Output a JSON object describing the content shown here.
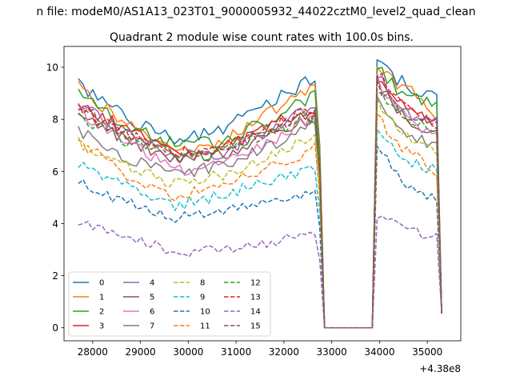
{
  "chart_data": {
    "type": "line",
    "suptitle": "n file: modeM0/AS1A13_023T01_9000005932_44022cztM0_level2_quad_clean",
    "title": "Quadrant 2 module wise count rates with 100.0s bins.",
    "xlabel": "",
    "ylabel": "",
    "x_offset_label": "+4.38e8",
    "xlim": [
      27400,
      35700
    ],
    "ylim": [
      -0.5,
      10.8
    ],
    "xticks": [
      28000,
      29000,
      30000,
      31000,
      32000,
      33000,
      34000,
      35000
    ],
    "yticks": [
      0,
      2,
      4,
      6,
      8,
      10
    ],
    "grid": false,
    "legend_position": "lower-left",
    "legend_columns": 4,
    "segments": [
      {
        "x_start": 27700,
        "x_end": 32750
      },
      {
        "x_start": 32850,
        "x_end": 33850
      },
      {
        "x_start": 33950,
        "x_end": 35300
      }
    ],
    "series": [
      {
        "name": "0",
        "color": "#1f77b4",
        "dashed": false,
        "seg1": [
          9.4,
          8.0,
          7.2,
          7.7,
          8.7,
          9.7
        ],
        "gap": 0,
        "seg3": [
          10.3,
          9.5,
          9.1,
          8.6
        ]
      },
      {
        "name": "1",
        "color": "#ff7f0e",
        "dashed": false,
        "seg1": [
          9.2,
          7.9,
          6.9,
          7.2,
          8.3,
          9.4
        ],
        "gap": 0,
        "seg3": [
          10.0,
          9.2,
          8.9,
          8.0
        ]
      },
      {
        "name": "2",
        "color": "#2ca02c",
        "dashed": false,
        "seg1": [
          9.0,
          7.8,
          7.0,
          7.2,
          8.0,
          9.0
        ],
        "gap": 0,
        "seg3": [
          10.1,
          9.0,
          8.8,
          8.5
        ]
      },
      {
        "name": "3",
        "color": "#d62728",
        "dashed": false,
        "seg1": [
          8.6,
          7.6,
          6.8,
          6.9,
          7.8,
          8.4
        ],
        "gap": 0,
        "seg3": [
          9.6,
          8.8,
          8.2,
          7.8
        ]
      },
      {
        "name": "4",
        "color": "#9467bd",
        "dashed": false,
        "seg1": [
          8.7,
          7.4,
          6.6,
          6.7,
          7.7,
          8.5
        ],
        "gap": 0,
        "seg3": [
          9.7,
          8.5,
          8.0,
          7.9
        ]
      },
      {
        "name": "5",
        "color": "#8c564b",
        "dashed": false,
        "seg1": [
          8.3,
          7.2,
          6.5,
          6.6,
          7.4,
          8.1
        ],
        "gap": 0,
        "seg3": [
          9.4,
          8.2,
          7.8,
          7.5
        ]
      },
      {
        "name": "6",
        "color": "#e377c2",
        "dashed": false,
        "seg1": [
          8.3,
          7.1,
          6.0,
          6.3,
          7.2,
          8.2
        ],
        "gap": 0,
        "seg3": [
          9.5,
          8.4,
          7.6,
          7.4
        ]
      },
      {
        "name": "7",
        "color": "#7f7f7f",
        "dashed": false,
        "seg1": [
          7.6,
          6.5,
          5.9,
          6.2,
          7.0,
          7.9
        ],
        "gap": 0,
        "seg3": [
          8.8,
          7.6,
          7.2,
          7.0
        ]
      },
      {
        "name": "8",
        "color": "#bcbd22",
        "dashed": true,
        "seg1": [
          7.1,
          6.2,
          5.5,
          5.9,
          6.7,
          7.3
        ],
        "gap": 0,
        "seg3": [
          8.7,
          7.5,
          7.1,
          6.6
        ]
      },
      {
        "name": "9",
        "color": "#17becf",
        "dashed": true,
        "seg1": [
          6.3,
          5.5,
          4.7,
          5.1,
          5.7,
          6.2
        ],
        "gap": 0,
        "seg3": [
          7.5,
          6.6,
          6.2,
          6.1
        ]
      },
      {
        "name": "10",
        "color": "#1f77b4",
        "dashed": true,
        "seg1": [
          5.6,
          4.8,
          4.2,
          4.4,
          4.9,
          5.3
        ],
        "gap": 0,
        "seg3": [
          7.0,
          5.8,
          5.1,
          4.8
        ]
      },
      {
        "name": "11",
        "color": "#ff7f0e",
        "dashed": true,
        "seg1": [
          7.2,
          5.8,
          5.0,
          5.5,
          6.2,
          7.0
        ],
        "gap": 0,
        "seg3": [
          8.2,
          7.0,
          6.6,
          5.8
        ]
      },
      {
        "name": "12",
        "color": "#2ca02c",
        "dashed": true,
        "seg1": [
          8.1,
          7.2,
          6.6,
          6.7,
          7.5,
          8.2
        ],
        "gap": 0,
        "seg3": [
          9.2,
          8.2,
          7.8,
          7.6
        ]
      },
      {
        "name": "13",
        "color": "#d62728",
        "dashed": true,
        "seg1": [
          8.4,
          7.4,
          6.7,
          6.9,
          7.7,
          8.5
        ],
        "gap": 0,
        "seg3": [
          9.8,
          8.6,
          8.0,
          7.7
        ]
      },
      {
        "name": "14",
        "color": "#9467bd",
        "dashed": true,
        "seg1": [
          4.1,
          3.5,
          2.9,
          3.0,
          3.3,
          3.6
        ],
        "gap": 0,
        "seg3": [
          4.3,
          3.9,
          3.6,
          3.4
        ]
      },
      {
        "name": "15",
        "color": "#8c564b",
        "dashed": true,
        "seg1": [
          8.5,
          7.3,
          6.5,
          6.8,
          7.6,
          8.3
        ],
        "gap": 0,
        "seg3": [
          9.3,
          8.3,
          7.9,
          7.6
        ]
      }
    ]
  }
}
